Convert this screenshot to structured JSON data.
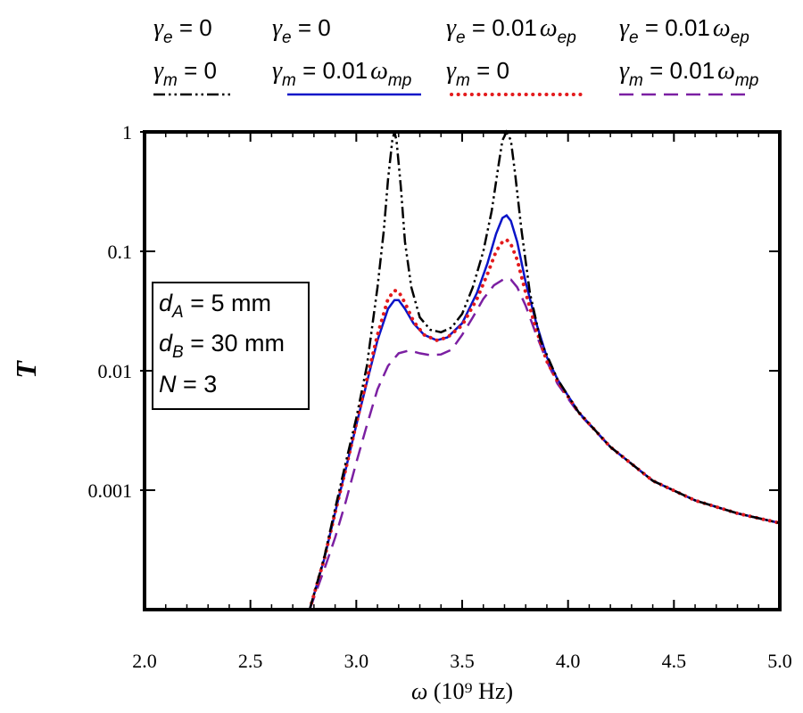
{
  "chart_data": {
    "type": "line",
    "xlabel": "ω (10⁹ Hz)",
    "ylabel": "T",
    "xscale": "linear",
    "yscale": "log",
    "xlim": [
      2.0,
      5.0
    ],
    "ylim": [
      0.0001,
      1.0
    ],
    "x_ticks": [
      2.0,
      2.5,
      3.0,
      3.5,
      4.0,
      4.5,
      5.0
    ],
    "x_tick_labels": [
      "2.0",
      "2.5",
      "3.0",
      "3.5",
      "4.0",
      "4.5",
      "5.0"
    ],
    "y_ticks": [
      0.001,
      0.01,
      0.1,
      1
    ],
    "y_tick_labels": [
      "0.001",
      "0.01",
      "0.1",
      "1"
    ],
    "legend_position": "top",
    "params": [
      "d_A = 5 mm",
      "d_B = 30 mm",
      "N = 3"
    ],
    "series": [
      {
        "name": "γe = 0, γm = 0",
        "legend_line1": "γe = 0",
        "legend_line2": "γm = 0",
        "color": "#000000",
        "style": "dashdotdot",
        "x": [
          2.78,
          2.85,
          2.9,
          2.95,
          3.0,
          3.05,
          3.1,
          3.13,
          3.15,
          3.17,
          3.18,
          3.19,
          3.21,
          3.23,
          3.26,
          3.3,
          3.35,
          3.4,
          3.45,
          3.5,
          3.55,
          3.6,
          3.64,
          3.67,
          3.69,
          3.71,
          3.73,
          3.75,
          3.78,
          3.82,
          3.87,
          3.95,
          4.05,
          4.2,
          4.4,
          4.6,
          4.8,
          5.0
        ],
        "y": [
          0.0001,
          0.00028,
          0.0007,
          0.0017,
          0.004,
          0.011,
          0.05,
          0.15,
          0.4,
          0.85,
          1.0,
          0.85,
          0.35,
          0.12,
          0.05,
          0.028,
          0.022,
          0.021,
          0.023,
          0.03,
          0.05,
          0.1,
          0.22,
          0.5,
          0.85,
          1.0,
          0.85,
          0.45,
          0.15,
          0.045,
          0.018,
          0.0085,
          0.0045,
          0.0023,
          0.0012,
          0.00082,
          0.00064,
          0.00053
        ]
      },
      {
        "name": "γe = 0, γm = 0.01ωmp",
        "legend_line1": "γe = 0",
        "legend_line2": "γm = 0.01ωmp",
        "color": "#0a14c8",
        "style": "solid",
        "x": [
          2.78,
          2.85,
          2.9,
          2.95,
          3.0,
          3.05,
          3.1,
          3.15,
          3.18,
          3.2,
          3.23,
          3.27,
          3.32,
          3.38,
          3.43,
          3.5,
          3.57,
          3.62,
          3.66,
          3.69,
          3.71,
          3.73,
          3.76,
          3.8,
          3.85,
          3.9,
          3.95,
          4.05,
          4.2,
          4.4,
          4.6,
          4.8,
          5.0
        ],
        "y": [
          0.0001,
          0.00027,
          0.00065,
          0.0015,
          0.0035,
          0.008,
          0.018,
          0.033,
          0.039,
          0.039,
          0.033,
          0.025,
          0.02,
          0.018,
          0.019,
          0.025,
          0.045,
          0.08,
          0.14,
          0.19,
          0.2,
          0.18,
          0.12,
          0.055,
          0.025,
          0.013,
          0.0085,
          0.0045,
          0.0023,
          0.0012,
          0.00082,
          0.00064,
          0.00053
        ]
      },
      {
        "name": "γe = 0.01ωep, γm = 0",
        "legend_line1": "γe = 0.01ωep",
        "legend_line2": "γm = 0",
        "color": "#e31a1c",
        "style": "dotted",
        "x": [
          2.78,
          2.85,
          2.9,
          2.95,
          3.0,
          3.05,
          3.1,
          3.15,
          3.18,
          3.2,
          3.23,
          3.27,
          3.32,
          3.38,
          3.43,
          3.5,
          3.57,
          3.62,
          3.66,
          3.69,
          3.71,
          3.73,
          3.76,
          3.8,
          3.85,
          3.9,
          3.95,
          4.05,
          4.2,
          4.4,
          4.6,
          4.8,
          5.0
        ],
        "y": [
          0.0001,
          0.00027,
          0.00065,
          0.0015,
          0.0036,
          0.0085,
          0.02,
          0.04,
          0.047,
          0.046,
          0.037,
          0.026,
          0.02,
          0.018,
          0.019,
          0.024,
          0.04,
          0.065,
          0.1,
          0.12,
          0.125,
          0.115,
          0.085,
          0.045,
          0.022,
          0.012,
          0.0082,
          0.0045,
          0.0023,
          0.0012,
          0.00082,
          0.00064,
          0.00053
        ]
      },
      {
        "name": "γe = 0.01ωep, γm = 0.01ωmp",
        "legend_line1": "γe = 0.01ωep",
        "legend_line2": "γm = 0.01ωmp",
        "color": "#7b1fa2",
        "style": "dashed",
        "x": [
          2.78,
          2.85,
          2.9,
          2.95,
          3.0,
          3.05,
          3.1,
          3.15,
          3.2,
          3.25,
          3.3,
          3.35,
          3.4,
          3.45,
          3.5,
          3.55,
          3.6,
          3.65,
          3.7,
          3.73,
          3.76,
          3.8,
          3.85,
          3.9,
          3.95,
          4.05,
          4.2,
          4.4,
          4.6,
          4.8,
          5.0
        ],
        "y": [
          0.0001,
          0.00022,
          0.0004,
          0.0008,
          0.0017,
          0.0035,
          0.007,
          0.011,
          0.014,
          0.0148,
          0.014,
          0.0135,
          0.0137,
          0.015,
          0.02,
          0.028,
          0.04,
          0.052,
          0.059,
          0.058,
          0.05,
          0.035,
          0.02,
          0.012,
          0.0078,
          0.0044,
          0.0023,
          0.0012,
          0.00082,
          0.00064,
          0.00053
        ]
      }
    ]
  }
}
